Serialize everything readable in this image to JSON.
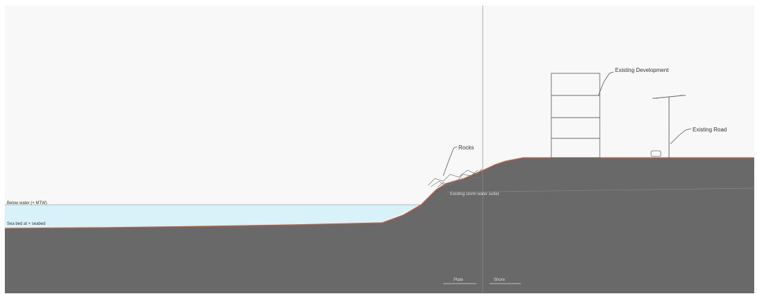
{
  "labels": {
    "existing_development": "Existing Development",
    "existing_road": "Existing Road",
    "rocks": "Rocks",
    "design_water_level": "Below water (+ MTW)",
    "seabed_level": "Sea bed at + seabed",
    "existing_water_table": "Existing storm water outlet",
    "sea_side": "Plate",
    "land_side": "Shore"
  },
  "colors": {
    "ground": "#696969",
    "water": "#d9f1f8",
    "sky": "#f8f8f8",
    "profile_line": "#c86448",
    "linework": "#555555"
  }
}
